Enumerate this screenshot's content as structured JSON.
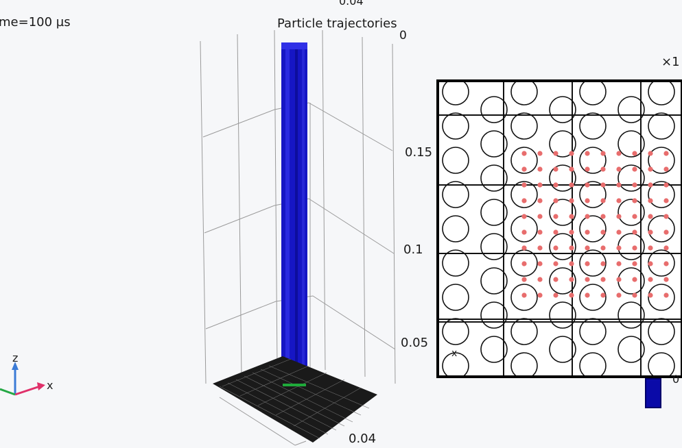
{
  "plot": {
    "time_label": "me=100 µs",
    "title": "Particle trajectories",
    "top_fragment": "0.04"
  },
  "axes": {
    "z_ticks": [
      "0",
      "0.15",
      "0.1",
      "0.05"
    ],
    "bottom_tick": "0.04",
    "triad_z": "z",
    "triad_x": "x"
  },
  "inset": {
    "scale_fragment": "×1",
    "axis_x": "x",
    "legend_fragment": "0"
  },
  "colors": {
    "trajectory": "#1515c8",
    "particle_dot": "#e86d6d",
    "mesh": "#111111"
  }
}
